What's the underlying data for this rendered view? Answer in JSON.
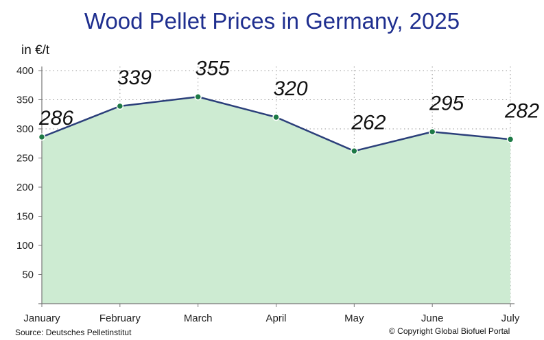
{
  "chart_data": {
    "type": "area",
    "title": "Wood Pellet Prices in Germany, 2025",
    "ylabel": "in €/t",
    "xlabel": "",
    "categories": [
      "January",
      "February",
      "March",
      "April",
      "May",
      "June",
      "July"
    ],
    "values": [
      286,
      339,
      355,
      320,
      262,
      295,
      282
    ],
    "yticks": [
      50,
      100,
      150,
      200,
      250,
      300,
      350,
      400
    ],
    "ylim": [
      0,
      400
    ],
    "grid": true,
    "legend": "none",
    "source": "Source: Deutsches Pelletinstitut",
    "copyright": "© Copyright Global Biofuel Portal"
  },
  "colors": {
    "title": "#1f2f8f",
    "line": "#2b3f7a",
    "area": "#cdebd2",
    "marker": "#1e7a46",
    "grid": "#999999",
    "axis": "#777777"
  }
}
